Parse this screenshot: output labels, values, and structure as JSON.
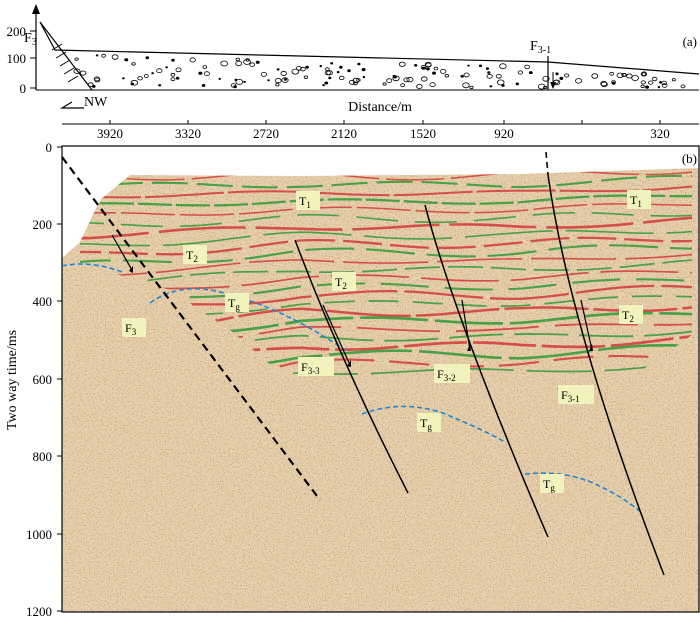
{
  "panel_a": {
    "tag": "(a)",
    "y_ticks": [
      "200",
      "100",
      "0"
    ],
    "faults": [
      {
        "base": "F",
        "sub": "3"
      },
      {
        "base": "F",
        "sub": "3-1"
      }
    ],
    "direction": "NW"
  },
  "distance_axis": {
    "title": "Distance/m",
    "ticks": [
      "3920",
      "3320",
      "2720",
      "2120",
      "1520",
      "920",
      "320"
    ]
  },
  "panel_b": {
    "tag": "(b)",
    "ylabel": "Two way time/ms",
    "y_ticks": [
      "0",
      "200",
      "400",
      "600",
      "800",
      "1000",
      "1200"
    ],
    "horizons": [
      {
        "base": "T",
        "sub": "1"
      },
      {
        "base": "T",
        "sub": "1"
      },
      {
        "base": "T",
        "sub": "2"
      },
      {
        "base": "T",
        "sub": "2"
      },
      {
        "base": "T",
        "sub": "2"
      },
      {
        "base": "T",
        "sub": "g"
      },
      {
        "base": "T",
        "sub": "g"
      },
      {
        "base": "T",
        "sub": "g"
      }
    ],
    "faults": [
      {
        "base": "F",
        "sub": "3"
      },
      {
        "base": "F",
        "sub": "3-3"
      },
      {
        "base": "F",
        "sub": "3-2"
      },
      {
        "base": "F",
        "sub": "3-1"
      }
    ]
  },
  "colors": {
    "seismic_bg": "#e7d2ad",
    "reflector_red": "#d23a3a",
    "reflector_green": "#2f9a36",
    "tg_dash": "#1e88d8",
    "label_bg": "#f2f2bc"
  }
}
